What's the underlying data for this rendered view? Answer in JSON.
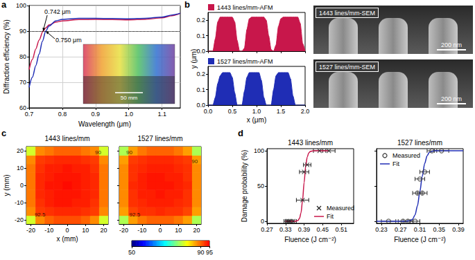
{
  "chart_data": [
    {
      "panel": "a",
      "type": "line",
      "xlabel": "Wavelength (μm)",
      "ylabel": "Diffraction efficiency (%)",
      "xlim": [
        0.7,
        1.155
      ],
      "xticks": [
        0.7,
        0.8,
        0.9,
        {
          "value": 1,
          "label": "1.0"
        },
        1.1
      ],
      "ylim": [
        60,
        100
      ],
      "yticks": [
        60,
        70,
        80,
        90,
        100
      ],
      "grid": true,
      "reference_lines": [
        {
          "y": 90,
          "line_style": "dotted"
        }
      ],
      "series": [
        {
          "color": "#c8174b",
          "x": [
            0.7,
            0.71,
            0.72,
            0.73,
            0.742,
            0.75,
            0.76,
            0.78,
            0.8,
            0.85,
            0.9,
            0.95,
            1.0,
            1.05,
            1.1,
            1.13,
            1.155
          ],
          "values": [
            75,
            79,
            83,
            86.5,
            90,
            91.3,
            92.4,
            93.5,
            94,
            94.5,
            94.6,
            94.5,
            94.4,
            94.6,
            95.2,
            96,
            97
          ]
        },
        {
          "color": "#1f2db5",
          "x": [
            0.7,
            0.71,
            0.72,
            0.73,
            0.74,
            0.75,
            0.76,
            0.78,
            0.8,
            0.85,
            0.9,
            0.95,
            1.0,
            1.05,
            1.1,
            1.13,
            1.155
          ],
          "values": [
            68,
            72,
            76.5,
            81,
            86,
            90,
            92,
            94,
            94.6,
            95,
            95,
            94.9,
            94.8,
            95,
            95.5,
            96.3,
            97
          ]
        }
      ],
      "annotations": [
        {
          "text": "0.742 μm",
          "x": 0.742,
          "y": 90
        },
        {
          "text": "0.750 μm",
          "x": 0.75,
          "y": 90
        }
      ],
      "inset": {
        "text": "50 mm"
      }
    },
    {
      "panel": "b",
      "type": "area",
      "xlabel": "x (μm)",
      "ylabel": "y (μm)",
      "xlim": [
        0,
        2
      ],
      "xticks": [
        {
          "value": 0,
          "label": "0.0"
        },
        {
          "value": 0.5,
          "label": "0.5"
        },
        {
          "value": 1,
          "label": "1.0"
        },
        {
          "value": 1.5,
          "label": "1.5"
        },
        {
          "value": 2,
          "label": "2.0"
        }
      ],
      "ylim": [
        0,
        0.25
      ],
      "yticks": [
        {
          "value": 0,
          "label": "0.0"
        },
        {
          "value": 0.1,
          "label": "0.1"
        },
        {
          "value": 0.2,
          "label": "0.2"
        }
      ],
      "series": [
        {
          "name": "1443 lines/mm-AFM",
          "color": "#c8174b",
          "x": [
            0,
            0.1,
            0.15,
            0.2,
            0.25,
            0.3,
            0.4,
            0.5,
            0.55,
            0.6,
            0.65,
            0.7,
            0.75,
            0.8,
            0.85,
            0.9,
            1.0,
            1.1,
            1.15,
            1.2,
            1.25,
            1.3,
            1.35,
            1.4,
            1.45,
            1.5,
            1.55,
            1.7,
            1.85,
            1.9,
            1.95,
            2.0
          ],
          "values": [
            0,
            0,
            0.08,
            0.19,
            0.22,
            0.22,
            0.22,
            0.22,
            0.19,
            0.07,
            0,
            0,
            0.02,
            0.14,
            0.21,
            0.22,
            0.22,
            0.22,
            0.22,
            0.2,
            0.1,
            0.01,
            0,
            0.04,
            0.16,
            0.21,
            0.22,
            0.22,
            0.22,
            0.18,
            0.05,
            0
          ]
        },
        {
          "name": "1527 lines/mm-AFM",
          "color": "#1f2db5",
          "x": [
            0,
            0.1,
            0.15,
            0.2,
            0.25,
            0.3,
            0.45,
            0.5,
            0.55,
            0.6,
            0.7,
            0.75,
            0.8,
            0.85,
            0.9,
            1.05,
            1.1,
            1.15,
            1.2,
            1.3,
            1.35,
            1.4,
            1.45,
            1.65,
            1.7,
            1.75,
            1.8,
            2.0
          ],
          "values": [
            0,
            0,
            0.05,
            0.14,
            0.19,
            0.21,
            0.21,
            0.18,
            0.08,
            0,
            0,
            0.09,
            0.18,
            0.21,
            0.21,
            0.21,
            0.16,
            0.05,
            0,
            0,
            0.1,
            0.19,
            0.21,
            0.21,
            0.17,
            0.06,
            0,
            0
          ]
        }
      ],
      "images": [
        {
          "label": "1443 lines/mm-SEM",
          "scale_bar": "200 nm"
        },
        {
          "label": "1527 lines/mm-SEM",
          "scale_bar": "200 nm"
        }
      ]
    },
    {
      "panel": "c",
      "type": "heatmap",
      "xlabel": "x (mm)",
      "ylabel": "y (mm)",
      "xlim": [
        -22.5,
        22.5
      ],
      "xticks": [
        -20,
        -10,
        0,
        10,
        20
      ],
      "ylim": [
        -22.5,
        22.5
      ],
      "yticks": [
        -20,
        -10,
        0,
        10,
        20
      ],
      "x": [
        -20,
        -15,
        -10,
        -5,
        0,
        5,
        10,
        15,
        20
      ],
      "y": [
        -20,
        -15,
        -10,
        -5,
        0,
        5,
        10,
        15,
        20
      ],
      "colorbar_range": [
        50,
        95
      ],
      "colorbar_ticks": [
        50,
        90,
        95
      ],
      "maps": [
        {
          "title": "1443 lines/mm",
          "z": [
            [
              80,
              88,
              90,
              91,
              91,
              91,
              90,
              88,
              80
            ],
            [
              88,
              92,
              92.5,
              93,
              93,
              93,
              92.5,
              92,
              88
            ],
            [
              89,
              92.5,
              93.5,
              94,
              94,
              93.5,
              93.5,
              92.5,
              89
            ],
            [
              89,
              93,
              93.5,
              94,
              94,
              94,
              93.5,
              93,
              89
            ],
            [
              89,
              93,
              94,
              94,
              94.5,
              94,
              93.5,
              93,
              89
            ],
            [
              89,
              93,
              93.5,
              94,
              94,
              94,
              93.5,
              93,
              89
            ],
            [
              89,
              92.5,
              93.5,
              93.5,
              94,
              93.5,
              93.5,
              92.5,
              89
            ],
            [
              88,
              92,
              92.5,
              93,
              93,
              93,
              92.5,
              92,
              88
            ],
            [
              80,
              88,
              89,
              90,
              90,
              90,
              89,
              88,
              80
            ]
          ],
          "annotations": [
            {
              "text": "90",
              "x": 17,
              "y": 19
            },
            {
              "text": "92.5",
              "x": -15,
              "y": -17
            }
          ]
        },
        {
          "title": "1527 lines/mm",
          "z": [
            [
              78,
              87,
              89,
              90,
              90,
              90,
              89,
              87,
              78
            ],
            [
              87,
              91.5,
              92.5,
              92.5,
              93,
              92.5,
              92.5,
              91.5,
              87
            ],
            [
              88,
              92.5,
              93,
              93.5,
              93.5,
              93.5,
              93,
              92.5,
              88
            ],
            [
              88,
              92.5,
              93.5,
              93.5,
              94,
              93.5,
              93.5,
              92.5,
              88
            ],
            [
              88,
              93,
              93.5,
              94,
              94,
              94,
              93.5,
              93,
              88
            ],
            [
              88,
              92.5,
              93.5,
              94,
              94,
              93.5,
              93.5,
              92.5,
              88
            ],
            [
              88,
              92.5,
              93,
              93.5,
              93.5,
              93.5,
              93,
              92.5,
              88
            ],
            [
              87,
              92,
              92.5,
              93,
              93,
              93,
              92.5,
              92,
              87
            ],
            [
              78,
              87,
              89,
              90,
              90,
              90,
              89,
              87,
              78
            ]
          ],
          "annotations": [
            {
              "text": "90",
              "x": -17,
              "y": 19
            },
            {
              "text": "90",
              "x": 19,
              "y": 14
            },
            {
              "text": "92.5",
              "x": -14,
              "y": -17
            }
          ]
        }
      ]
    },
    {
      "panel": "d",
      "type": "scatter",
      "xlabel": "Fluence (J cm⁻²)",
      "ylabel": "Damage probability (%)",
      "ylim": [
        -3,
        103
      ],
      "yticks": [
        0,
        50,
        100
      ],
      "plots": [
        {
          "title": "1443 lines/mm",
          "xlim": [
            0.27,
            0.55
          ],
          "xticks": [
            0.27,
            0.33,
            0.39,
            0.45,
            0.51
          ],
          "legend": "lower right",
          "series": [
            {
              "name": "Measured",
              "type": "scatter",
              "marker": "x",
              "color": "#222222",
              "x": [
                0.335,
                0.34,
                0.345,
                0.355,
                0.385,
                0.39,
                0.4,
                0.44,
                0.47
              ],
              "values": [
                0,
                0,
                0,
                0,
                30,
                70,
                80,
                100,
                100
              ],
              "x_error": [
                0.01,
                0.01,
                0.01,
                0.01,
                0.02,
                0.015,
                0.012,
                0.02,
                0.02
              ]
            },
            {
              "name": "Fit",
              "type": "line",
              "color": "#c8174b",
              "x": [
                0.33,
                0.36,
                0.37,
                0.375,
                0.38,
                0.385,
                0.39,
                0.395,
                0.4,
                0.405,
                0.41,
                0.42,
                0.47
              ],
              "values": [
                0,
                0,
                1,
                4,
                12,
                30,
                55,
                78,
                91,
                97,
                99,
                100,
                100
              ]
            }
          ]
        },
        {
          "title": "1527 lines/mm",
          "xlim": [
            0.22,
            0.4
          ],
          "xticks": [
            0.23,
            0.27,
            0.31,
            0.35,
            0.39
          ],
          "tick_labels": "x",
          "legend": "upper left",
          "series": [
            {
              "name": "Measured",
              "type": "scatter",
              "marker": "circle",
              "color": "#333333",
              "x": [
                0.245,
                0.275,
                0.285,
                0.3,
                0.305,
                0.31,
                0.315,
                0.32,
                0.335,
                0.355
              ],
              "values": [
                0,
                0,
                0,
                0,
                40,
                60,
                40,
                70,
                100,
                100
              ],
              "x_error": [
                0.015,
                0.01,
                0.01,
                0.01,
                0.01,
                0.01,
                0.01,
                0.01,
                0.01,
                0.015
              ]
            },
            {
              "name": "Fit",
              "type": "line",
              "color": "#1f2db5",
              "x": [
                0.22,
                0.28,
                0.29,
                0.295,
                0.3,
                0.305,
                0.31,
                0.315,
                0.32,
                0.325,
                0.33,
                0.34,
                0.4
              ],
              "values": [
                0,
                0,
                1,
                3,
                9,
                22,
                42,
                64,
                82,
                93,
                98,
                100,
                100
              ]
            }
          ]
        }
      ]
    }
  ]
}
